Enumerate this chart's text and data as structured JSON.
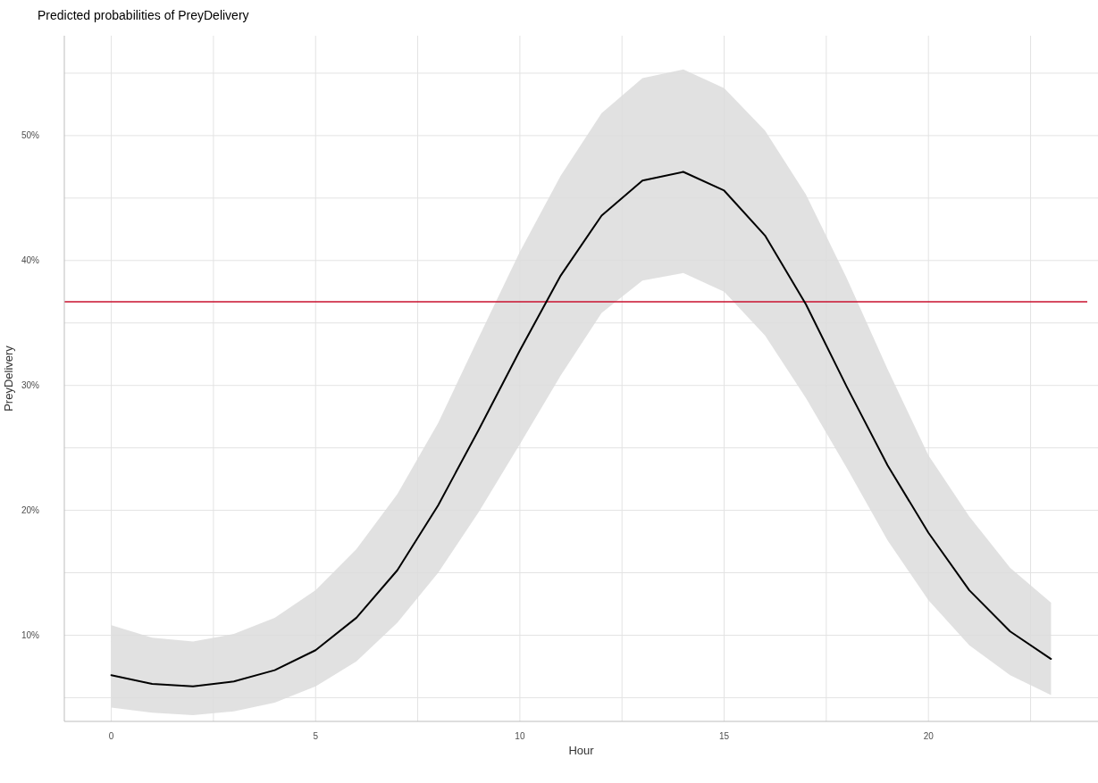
{
  "chart_data": {
    "type": "line",
    "title": "Predicted probabilities of PreyDelivery",
    "xlabel": "Hour",
    "ylabel": "PreyDelivery",
    "x": [
      0,
      1,
      2,
      3,
      4,
      5,
      6,
      7,
      8,
      9,
      10,
      11,
      12,
      13,
      14,
      15,
      16,
      17,
      18,
      19,
      20,
      21,
      22,
      23
    ],
    "series": [
      {
        "color": "#000000",
        "values": [
          6.8,
          6.1,
          5.9,
          6.3,
          7.2,
          8.8,
          11.4,
          15.2,
          20.4,
          26.5,
          32.8,
          38.8,
          43.6,
          46.4,
          47.1,
          45.6,
          42.0,
          36.5,
          29.9,
          23.6,
          18.2,
          13.6,
          10.3,
          8.1
        ],
        "lower": [
          4.2,
          3.8,
          3.6,
          3.9,
          4.6,
          5.9,
          7.9,
          11.0,
          15.0,
          19.9,
          25.3,
          30.8,
          35.8,
          38.4,
          39.0,
          37.5,
          34.0,
          29.0,
          23.4,
          17.6,
          12.8,
          9.2,
          6.8,
          5.2
        ],
        "upper": [
          10.8,
          9.8,
          9.5,
          10.1,
          11.4,
          13.6,
          16.9,
          21.3,
          27.0,
          33.9,
          40.7,
          46.8,
          51.8,
          54.6,
          55.3,
          53.8,
          50.4,
          45.3,
          38.6,
          31.3,
          24.4,
          19.5,
          15.4,
          12.6
        ]
      }
    ],
    "xlim": [
      -1.15,
      24.15
    ],
    "ylim": [
      3.1,
      58
    ],
    "xticks": [
      0,
      {
        "value": 2.5,
        "label": null
      },
      5,
      {
        "value": 7.5,
        "label": null
      },
      10,
      {
        "value": 12.5,
        "label": null
      },
      15,
      {
        "value": 17.5,
        "label": null
      },
      20,
      {
        "value": 22.5,
        "label": null
      }
    ],
    "yticks": [
      {
        "value": 5,
        "label": null
      },
      {
        "value": 10,
        "label": "10%"
      },
      {
        "value": 15,
        "label": null
      },
      {
        "value": 20,
        "label": "20%"
      },
      {
        "value": 25,
        "label": null
      },
      {
        "value": 30,
        "label": "30%"
      },
      {
        "value": 35,
        "label": null
      },
      {
        "value": 40,
        "label": "40%"
      },
      {
        "value": 45,
        "label": null
      },
      {
        "value": 50,
        "label": "50%"
      },
      {
        "value": 55,
        "label": null
      }
    ],
    "ref_lines": [
      {
        "axis": "y",
        "value": 36.7,
        "color": "#c8102e"
      }
    ],
    "grid": true,
    "marker": "none",
    "line_style": "solid"
  }
}
